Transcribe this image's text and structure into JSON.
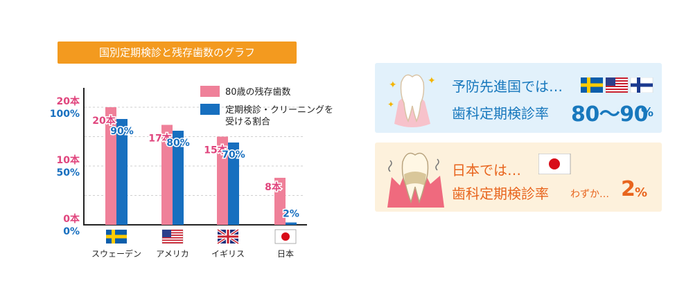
{
  "chart_data": {
    "type": "bar",
    "title": "国別定期検診と残存歯数のグラフ",
    "categories": [
      "スウェーデン",
      "アメリカ",
      "イギリス",
      "日本"
    ],
    "series": [
      {
        "name": "80歳の残存歯数",
        "values": [
          20,
          17,
          15,
          8
        ],
        "unit": "本",
        "color": "#ef8099",
        "labels": [
          "20本",
          "17本",
          "15本",
          "8本"
        ]
      },
      {
        "name": "定期検診・クリーニングを受ける割合",
        "values": [
          90,
          80,
          70,
          2
        ],
        "unit": "%",
        "color": "#176fbf",
        "labels": [
          "90%",
          "80%",
          "70%",
          "2%"
        ]
      }
    ],
    "y_left": {
      "ticks": [
        "20本",
        "10本",
        "0本"
      ],
      "values": [
        20,
        10,
        0
      ],
      "ylim": [
        0,
        20
      ],
      "color": "#e0457d"
    },
    "y_right": {
      "ticks": [
        "100%",
        "50%",
        "0%"
      ],
      "values": [
        100,
        50,
        0
      ],
      "ylim": [
        0,
        100
      ],
      "color": "#176fbf"
    },
    "legend_position": "top-right",
    "grid": true
  },
  "flags": [
    "sweden-flag",
    "usa-flag",
    "uk-flag",
    "japan-flag"
  ],
  "panels": {
    "top": {
      "line1": "予防先進国では…",
      "line2_label": "歯科定期検診率",
      "line2_value": "80～90",
      "line2_unit": "%",
      "flags": [
        "sweden-flag",
        "usa-flag",
        "finland-flag"
      ],
      "accent": "#1878bd"
    },
    "bottom": {
      "line1": "日本では…",
      "line2_label": "歯科定期検診率",
      "line2_sub": "わずか…",
      "line2_value": "2",
      "line2_unit": "%",
      "flags": [
        "japan-flag"
      ],
      "accent": "#e8651e"
    }
  }
}
